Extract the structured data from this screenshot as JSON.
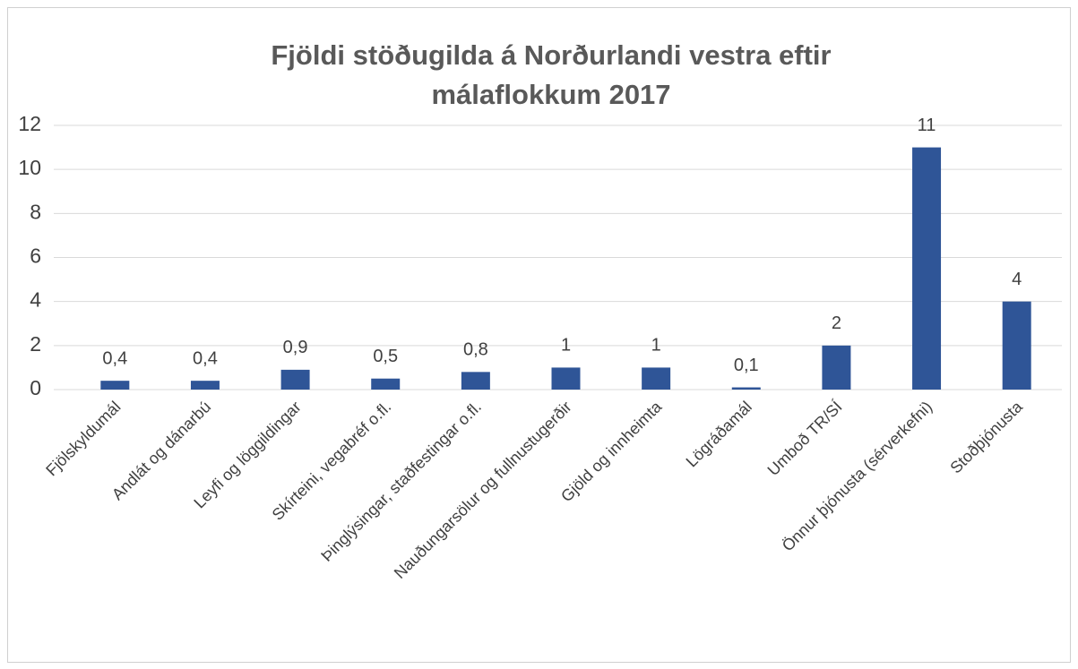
{
  "chart_data": {
    "type": "bar",
    "title": "Fjöldi stöðugilda á Norðurlandi vestra eftir málaflokkum 2017",
    "categories": [
      "Fjölskyldumál",
      "Andlát og dánarbú",
      "Leyfi og löggildingar",
      "Skírteini, vegabréf o.fl.",
      "Þinglýsingar, staðfestingar o.fl.",
      "Nauðungarsölur og fullnustugerðir",
      "Gjöld og innheimta",
      "Lögráðamál",
      "Umboð TR/SÍ",
      "Önnur þjónusta (sérverkefni)",
      "Stoðþjónusta"
    ],
    "values": [
      0.4,
      0.4,
      0.9,
      0.5,
      0.8,
      1,
      1,
      0.1,
      2,
      11,
      4
    ],
    "value_labels": [
      "0,4",
      "0,4",
      "0,9",
      "0,5",
      "0,8",
      "1",
      "1",
      "0,1",
      "2",
      "11",
      "4"
    ],
    "color": "#2f5597",
    "ylim": [
      0,
      12
    ],
    "yticks": [
      0,
      2,
      4,
      6,
      8,
      10,
      12
    ],
    "grid": true
  }
}
